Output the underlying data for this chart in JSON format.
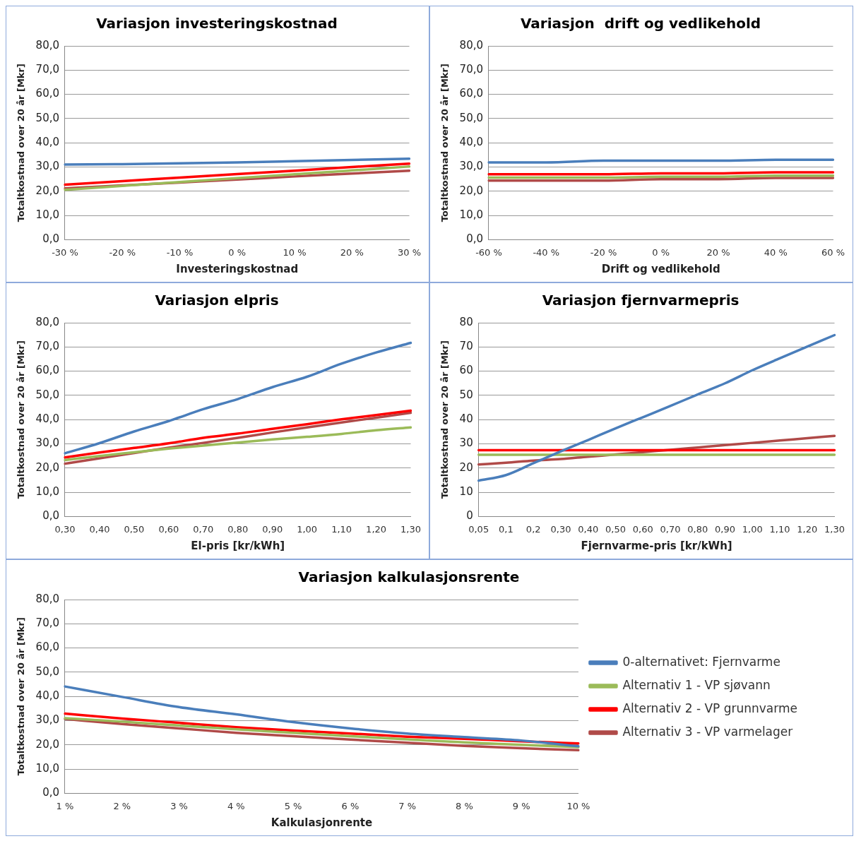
{
  "chart_data": [
    {
      "type": "line",
      "title": "Variasjon investeringskostnad",
      "xlabel": "Investeringskostnad",
      "ylabel": "Totaltkostnad over 20 år [Mkr]",
      "categories": [
        "-30 %",
        "-20 %",
        "-10 %",
        "0 %",
        "10 %",
        "20 %",
        "30 %"
      ],
      "ylim": [
        0,
        80
      ],
      "yticks": [
        {
          "value": 0,
          "label": "0,0"
        },
        {
          "value": 10,
          "label": "10,0"
        },
        {
          "value": 20,
          "label": "20,0"
        },
        {
          "value": 30,
          "label": "30,0"
        },
        {
          "value": 40,
          "label": "40,0"
        },
        {
          "value": 50,
          "label": "50,0"
        },
        {
          "value": 60,
          "label": "60,0"
        },
        {
          "value": 70,
          "label": "70,0"
        },
        {
          "value": 80,
          "label": "80,0"
        }
      ],
      "grid": "y",
      "marker": "none",
      "line_style": "solid",
      "series": [
        {
          "color": "#4a7ebb",
          "values": [
            31.0,
            31.2,
            31.5,
            31.9,
            32.4,
            32.9,
            33.4
          ]
        },
        {
          "color": "#9bbb59",
          "values": [
            20.6,
            22.2,
            23.8,
            25.4,
            27.0,
            28.6,
            30.2
          ]
        },
        {
          "color": "#ff0000",
          "values": [
            22.7,
            24.2,
            25.6,
            27.1,
            28.5,
            30.0,
            31.4
          ]
        },
        {
          "color": "#b04a48",
          "values": [
            21.2,
            22.4,
            23.6,
            24.8,
            26.1,
            27.3,
            28.5
          ]
        }
      ]
    },
    {
      "type": "line",
      "title": "Variasjon  drift og vedlikehold",
      "xlabel": "Drift og vedlikehold",
      "ylabel": "Totaltkostnad over 20 år [Mkr]",
      "categories": [
        "-60 %",
        "-40 %",
        "-20 %",
        "0 %",
        "20 %",
        "40 %",
        "60 %"
      ],
      "ylim": [
        0,
        80
      ],
      "yticks": [
        {
          "value": 0,
          "label": "0,0"
        },
        {
          "value": 10,
          "label": "10,0"
        },
        {
          "value": 20,
          "label": "20,0"
        },
        {
          "value": 30,
          "label": "30,0"
        },
        {
          "value": 40,
          "label": "40,0"
        },
        {
          "value": 50,
          "label": "50,0"
        },
        {
          "value": 60,
          "label": "60,0"
        },
        {
          "value": 70,
          "label": "70,0"
        },
        {
          "value": 80,
          "label": "80,0"
        }
      ],
      "grid": "y",
      "marker": "none",
      "line_style": "solid",
      "series": [
        {
          "color": "#4a7ebb",
          "values": [
            31.9,
            31.9,
            32.6,
            32.6,
            32.6,
            33.0,
            33.0
          ]
        },
        {
          "color": "#9bbb59",
          "values": [
            25.6,
            25.6,
            25.6,
            26.0,
            26.0,
            26.4,
            26.4
          ]
        },
        {
          "color": "#ff0000",
          "values": [
            27.0,
            27.0,
            27.0,
            27.4,
            27.4,
            27.8,
            27.8
          ]
        },
        {
          "color": "#b04a48",
          "values": [
            24.4,
            24.4,
            24.4,
            25.0,
            25.0,
            25.5,
            25.5
          ]
        }
      ]
    },
    {
      "type": "line",
      "title": "Variasjon elpris",
      "xlabel": "El-pris [kr/kWh]",
      "ylabel": "Totaltkostnad over 20 år [Mkr]",
      "categories": [
        "0,30",
        "0,40",
        "0,50",
        "0,60",
        "0,70",
        "0,80",
        "0,90",
        "1,00",
        "1,10",
        "1,20",
        "1,30"
      ],
      "ylim": [
        0,
        80
      ],
      "yticks": [
        {
          "value": 0,
          "label": "0,0"
        },
        {
          "value": 10,
          "label": "10,0"
        },
        {
          "value": 20,
          "label": "20,0"
        },
        {
          "value": 30,
          "label": "30,0"
        },
        {
          "value": 40,
          "label": "40,0"
        },
        {
          "value": 50,
          "label": "50,0"
        },
        {
          "value": 60,
          "label": "60,0"
        },
        {
          "value": 70,
          "label": "70,0"
        },
        {
          "value": 80,
          "label": "80,0"
        }
      ],
      "grid": "y",
      "marker": "none",
      "line_style": "solid",
      "series": [
        {
          "color": "#4a7ebb",
          "values": [
            26.1,
            30.3,
            35.1,
            39.4,
            44.3,
            48.5,
            53.4,
            57.7,
            63.1,
            67.7,
            71.7
          ]
        },
        {
          "color": "#9bbb59",
          "values": [
            23.3,
            25.0,
            26.5,
            28.0,
            29.3,
            30.5,
            31.8,
            32.9,
            34.1,
            35.6,
            36.8
          ]
        },
        {
          "color": "#ff0000",
          "values": [
            24.4,
            26.4,
            28.3,
            30.2,
            32.5,
            34.2,
            36.2,
            38.1,
            40.1,
            41.9,
            43.7
          ]
        },
        {
          "color": "#b04a48",
          "values": [
            21.8,
            24.0,
            26.2,
            28.4,
            30.4,
            32.5,
            34.7,
            36.8,
            38.8,
            40.8,
            42.8
          ]
        }
      ]
    },
    {
      "type": "line",
      "title": "Variasjon fjernvarmepris",
      "xlabel": "Fjernvarme-pris [kr/kWh]",
      "ylabel": "Totaltkostnad over 20 år [Mkr]",
      "categories": [
        "0,05",
        "0,1",
        "0,2",
        "0,30",
        "0,40",
        "0,50",
        "0,60",
        "0,70",
        "0,80",
        "0,90",
        "1,00",
        "1,10",
        "1,20",
        "1,30"
      ],
      "ylim": [
        0,
        80
      ],
      "yticks": [
        0,
        10,
        20,
        30,
        40,
        50,
        60,
        70,
        80
      ],
      "grid": "y",
      "marker": "none",
      "line_style": "solid",
      "series": [
        {
          "color": "#4a7ebb",
          "values": [
            14.8,
            17.1,
            22.0,
            26.9,
            31.6,
            36.4,
            41.0,
            45.6,
            50.4,
            55.0,
            60.4,
            65.3,
            70.1,
            74.9
          ]
        },
        {
          "color": "#9bbb59",
          "values": [
            25.5,
            25.5,
            25.5,
            25.5,
            25.5,
            25.5,
            25.5,
            25.5,
            25.5,
            25.5,
            25.5,
            25.5,
            25.5,
            25.5
          ]
        },
        {
          "color": "#ff0000",
          "values": [
            27.4,
            27.4,
            27.4,
            27.4,
            27.4,
            27.4,
            27.4,
            27.4,
            27.4,
            27.4,
            27.4,
            27.4,
            27.4,
            27.4
          ]
        },
        {
          "color": "#b04a48",
          "values": [
            21.5,
            22.2,
            23.1,
            23.7,
            24.7,
            25.6,
            26.6,
            27.5,
            28.5,
            29.5,
            30.4,
            31.4,
            32.3,
            33.3
          ]
        }
      ]
    },
    {
      "type": "line",
      "title": "Variasjon kalkulasjonsrente",
      "xlabel": "Kalkulasjonrente",
      "ylabel": "Totaltkostnad over 20 år [Mkr]",
      "categories": [
        "1 %",
        "2 %",
        "3 %",
        "4 %",
        "5 %",
        "6 %",
        "7 %",
        "8 %",
        "9 %",
        "10 %"
      ],
      "ylim": [
        0,
        80
      ],
      "yticks": [
        {
          "value": 0,
          "label": "0,0"
        },
        {
          "value": 10,
          "label": "10,0"
        },
        {
          "value": 20,
          "label": "20,0"
        },
        {
          "value": 30,
          "label": "30,0"
        },
        {
          "value": 40,
          "label": "40,0"
        },
        {
          "value": 50,
          "label": "50,0"
        },
        {
          "value": 60,
          "label": "60,0"
        },
        {
          "value": 70,
          "label": "70,0"
        },
        {
          "value": 80,
          "label": "80,0"
        }
      ],
      "grid": "y",
      "marker": "none",
      "line_style": "solid",
      "legend": "right",
      "series": [
        {
          "name": "0-alternativet: Fjernvarme",
          "color": "#4a7ebb",
          "values": [
            44.1,
            39.8,
            35.6,
            32.6,
            29.4,
            26.8,
            24.7,
            23.2,
            21.8,
            19.4
          ]
        },
        {
          "name": "Alternativ 1 - VP sjøvann",
          "color": "#9bbb59",
          "values": [
            31.0,
            29.6,
            28.0,
            26.4,
            25.0,
            23.6,
            22.3,
            21.0,
            20.0,
            19.1
          ]
        },
        {
          "name": "Alternativ 2 - VP grunnvarme",
          "color": "#ff0000",
          "values": [
            32.9,
            30.9,
            29.1,
            27.3,
            25.9,
            24.7,
            23.4,
            22.5,
            21.5,
            20.6
          ]
        },
        {
          "name": "Alternativ 3 - VP varmelager",
          "color": "#b04a48",
          "values": [
            30.7,
            28.6,
            26.8,
            25.0,
            23.6,
            22.2,
            20.9,
            19.6,
            18.6,
            17.8
          ]
        }
      ]
    }
  ]
}
